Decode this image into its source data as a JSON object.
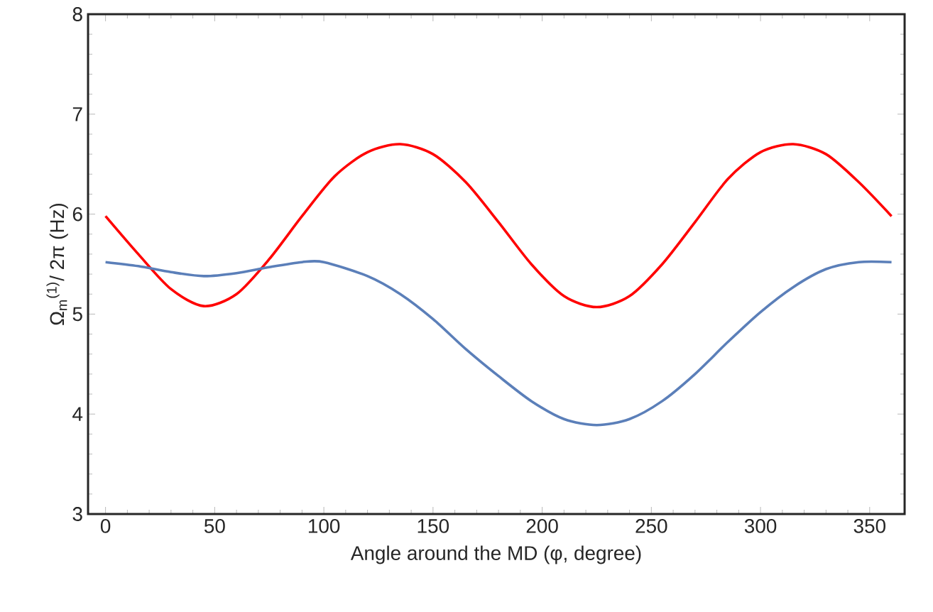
{
  "chart_data": {
    "type": "line",
    "xlabel": "Angle around the MD (φ, degree)",
    "ylabel": "Ω$_{m}$$^{(1)}$/ 2π (Hz)",
    "xlim": [
      -8,
      366
    ],
    "ylim": [
      3,
      8
    ],
    "xticks": [
      0,
      50,
      100,
      150,
      200,
      250,
      300,
      350
    ],
    "yticks": [
      3,
      4,
      5,
      6,
      7,
      8
    ],
    "grid": false,
    "marker": "none",
    "line_style": "solid",
    "series": [
      {
        "color": "#ff0000",
        "x": [
          0,
          15,
          30,
          45,
          60,
          75,
          90,
          105,
          120,
          135,
          150,
          165,
          180,
          195,
          210,
          225,
          240,
          255,
          270,
          285,
          300,
          315,
          330,
          345,
          360
        ],
        "values": [
          5.98,
          5.6,
          5.25,
          5.08,
          5.2,
          5.55,
          5.98,
          6.38,
          6.62,
          6.7,
          6.6,
          6.32,
          5.92,
          5.5,
          5.18,
          5.07,
          5.18,
          5.5,
          5.92,
          6.35,
          6.62,
          6.7,
          6.6,
          6.32,
          5.98
        ]
      },
      {
        "color": "#5b7fb9",
        "x": [
          0,
          15,
          30,
          45,
          60,
          75,
          90,
          100,
          120,
          135,
          150,
          165,
          180,
          195,
          210,
          225,
          240,
          255,
          270,
          285,
          300,
          315,
          330,
          345,
          360
        ],
        "values": [
          5.52,
          5.48,
          5.42,
          5.38,
          5.41,
          5.47,
          5.52,
          5.52,
          5.38,
          5.2,
          4.95,
          4.65,
          4.38,
          4.13,
          3.95,
          3.89,
          3.95,
          4.13,
          4.4,
          4.72,
          5.02,
          5.27,
          5.45,
          5.52,
          5.52
        ]
      }
    ]
  }
}
